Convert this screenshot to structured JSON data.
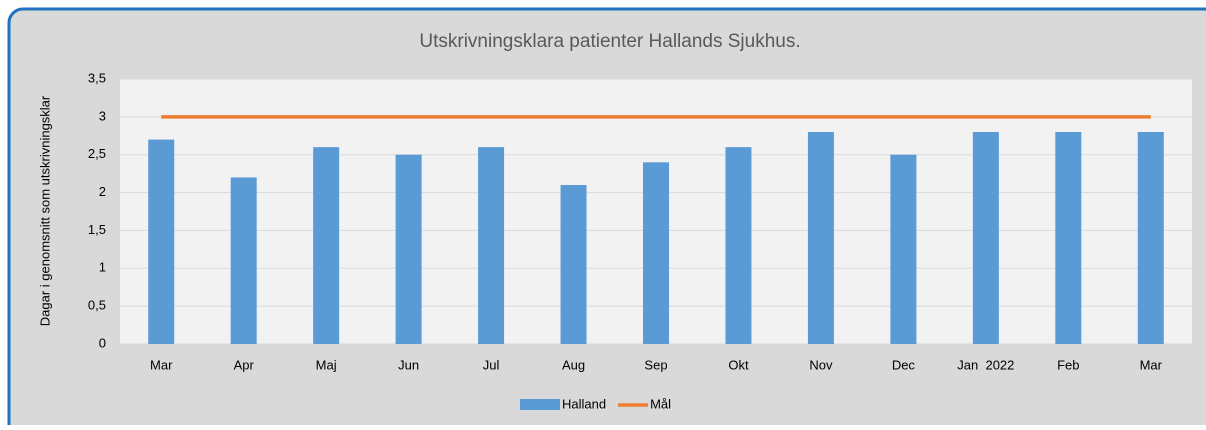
{
  "chart_data": {
    "type": "bar",
    "title": "Utskrivningsklara patienter Hallands Sjukhus.",
    "y_label": "Dagar i genomsnitt som utskrivningsklar",
    "categories": [
      "Mar",
      "Apr",
      "Maj",
      "Jun",
      "Jul",
      "Aug",
      "Sep",
      "Okt",
      "Nov",
      "Dec",
      "Jan  2022",
      "Feb",
      "Mar"
    ],
    "series": [
      {
        "name": "Halland",
        "type": "bar",
        "color": "#5b9bd5",
        "values": [
          2.7,
          2.2,
          2.6,
          2.5,
          2.6,
          2.1,
          2.4,
          2.6,
          2.8,
          2.5,
          2.8,
          2.8,
          2.8
        ]
      },
      {
        "name": "Mål",
        "type": "line",
        "color": "#ed7d31",
        "values": [
          3,
          3,
          3,
          3,
          3,
          3,
          3,
          3,
          3,
          3,
          3,
          3,
          3
        ]
      }
    ],
    "ylim": [
      0,
      3.5
    ],
    "yticks": [
      0,
      {
        "value": 0.5,
        "label": "0,5"
      },
      1,
      {
        "value": 1.5,
        "label": "1,5"
      },
      2,
      {
        "value": 2.5,
        "label": "2,5"
      },
      3,
      {
        "value": 3.5,
        "label": "3,5"
      }
    ],
    "grid": true,
    "legend": "bottom"
  }
}
